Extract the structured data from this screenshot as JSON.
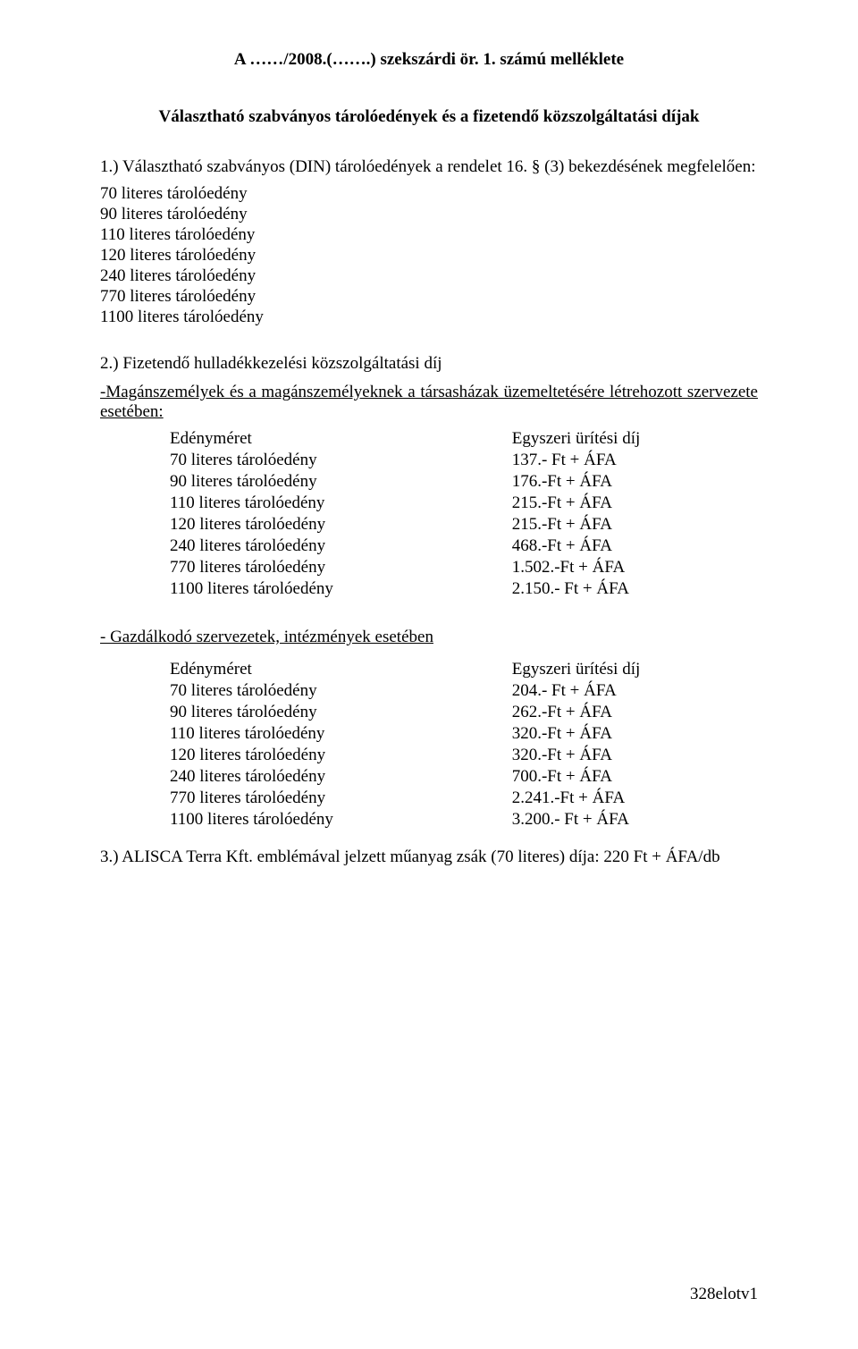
{
  "header": {
    "title": "A ……/2008.(…….) szekszárdi ör. 1. számú melléklete",
    "subtitle": "Választható szabványos tárolóedények és a fizetendő közszolgáltatási díjak"
  },
  "section1": {
    "intro": "1.) Választható szabványos (DIN) tárolóedények a rendelet 16. § (3) bekezdésének megfelelően:",
    "items": [
      "70 literes tárolóedény",
      "90 literes tárolóedény",
      "110 literes tárolóedény",
      "120 literes tárolóedény",
      "240 literes tárolóedény",
      "770 literes tárolóedény",
      "1100 literes tárolóedény"
    ]
  },
  "section2": {
    "title": "2.) Fizetendő hulladékkezelési közszolgáltatási díj",
    "sub_a": "-Magánszemélyek és a magánszemélyeknek a társasházak üzemeltetésére létrehozott szervezete esetében:",
    "col_headers": {
      "size": "Edényméret",
      "fee": "Egyszeri ürítési díj"
    },
    "rows_a": [
      {
        "size": "70 literes tárolóedény",
        "fee": "137.- Ft + ÁFA"
      },
      {
        "size": "90 literes tárolóedény",
        "fee": "176.-Ft + ÁFA"
      },
      {
        "size": "110 literes tárolóedény",
        "fee": "215.-Ft + ÁFA"
      },
      {
        "size": "120 literes tárolóedény",
        "fee": "215.-Ft + ÁFA"
      },
      {
        "size": "240 literes tárolóedény",
        "fee": "468.-Ft + ÁFA"
      },
      {
        "size": "770 literes tárolóedény",
        "fee": "1.502.-Ft + ÁFA"
      },
      {
        "size": "1100 literes tárolóedény",
        "fee": "2.150.- Ft + ÁFA"
      }
    ],
    "sub_b": "- Gazdálkodó szervezetek, intézmények esetében",
    "rows_b": [
      {
        "size": "70 literes tárolóedény",
        "fee": "204.- Ft + ÁFA"
      },
      {
        "size": "90 literes tárolóedény",
        "fee": "262.-Ft + ÁFA"
      },
      {
        "size": "110 literes tárolóedény",
        "fee": "320.-Ft + ÁFA"
      },
      {
        "size": "120 literes tárolóedény",
        "fee": "320.-Ft + ÁFA"
      },
      {
        "size": "240 literes tárolóedény",
        "fee": "700.-Ft + ÁFA"
      },
      {
        "size": "770 literes tárolóedény",
        "fee": "2.241.-Ft + ÁFA"
      },
      {
        "size": "1100 literes tárolóedény",
        "fee": "3.200.- Ft + ÁFA"
      }
    ]
  },
  "section3": {
    "text": "3.) ALISCA Terra Kft. emblémával jelzett műanyag zsák (70 literes) díja: 220 Ft + ÁFA/db"
  },
  "footer": "328elotv1"
}
